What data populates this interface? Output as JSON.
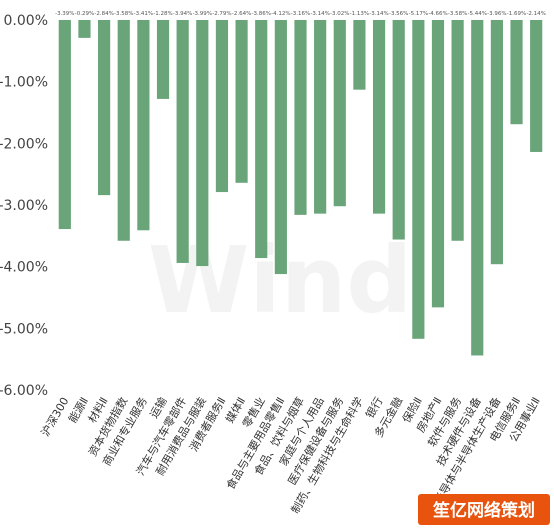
{
  "chart_data": {
    "type": "bar",
    "title": "",
    "xlabel": "",
    "ylabel": "",
    "ylim": [
      -6,
      0
    ],
    "yticks": [
      0,
      -1,
      -2,
      -3,
      -4,
      -5,
      -6
    ],
    "ytick_labels": [
      "0.00%",
      "-1.00%",
      "-2.00%",
      "-3.00%",
      "-4.00%",
      "-5.00%",
      "-6.00%"
    ],
    "grid": false,
    "legend": "none",
    "bar_color": "#6aa57a",
    "categories": [
      "沪深300",
      "能源Ⅱ",
      "材料Ⅱ",
      "资本货物指数",
      "商业和专业服务",
      "运输",
      "汽车与汽车零部件",
      "耐用消费品与服装",
      "消费者服务Ⅱ",
      "媒体Ⅱ",
      "零售业",
      "食品与主要用品零售Ⅱ",
      "食品、饮料与烟草",
      "家庭与个人用品",
      "医疗保健设备与服务",
      "制药、生物科技与生命科学",
      "银行",
      "多元金融",
      "保险Ⅱ",
      "房地产Ⅱ",
      "软件与服务",
      "技术硬件与设备",
      "半导体与半导体生产设备",
      "电信服务Ⅱ",
      "公用事业Ⅱ"
    ],
    "values": [
      -3.39,
      -0.29,
      -2.84,
      -3.58,
      -3.41,
      -1.28,
      -3.94,
      -3.99,
      -2.79,
      -2.64,
      -3.86,
      -4.12,
      -3.16,
      -3.14,
      -3.02,
      -1.13,
      -3.14,
      -3.56,
      -5.17,
      -4.66,
      -3.58,
      -5.44,
      -3.96,
      -1.69,
      -2.14
    ],
    "value_labels": [
      "-3.39%",
      "-0.29%",
      "-2.84%",
      "-3.58%",
      "-3.41%",
      "-1.28%",
      "-3.94%",
      "-3.99%",
      "-2.79%",
      "-2.64%",
      "-3.86%",
      "-4.12%",
      "-3.16%",
      "-3.14%",
      "-3.02%",
      "-1.13%",
      "-3.14%",
      "-3.56%",
      "-5.17%",
      "-4.66%",
      "-3.58%",
      "-5.44%",
      "-3.96%",
      "-1.69%",
      "-2.14%"
    ]
  },
  "watermark": "Wind",
  "badge": {
    "text": "笙亿网络策划",
    "color": "#e8540e"
  }
}
